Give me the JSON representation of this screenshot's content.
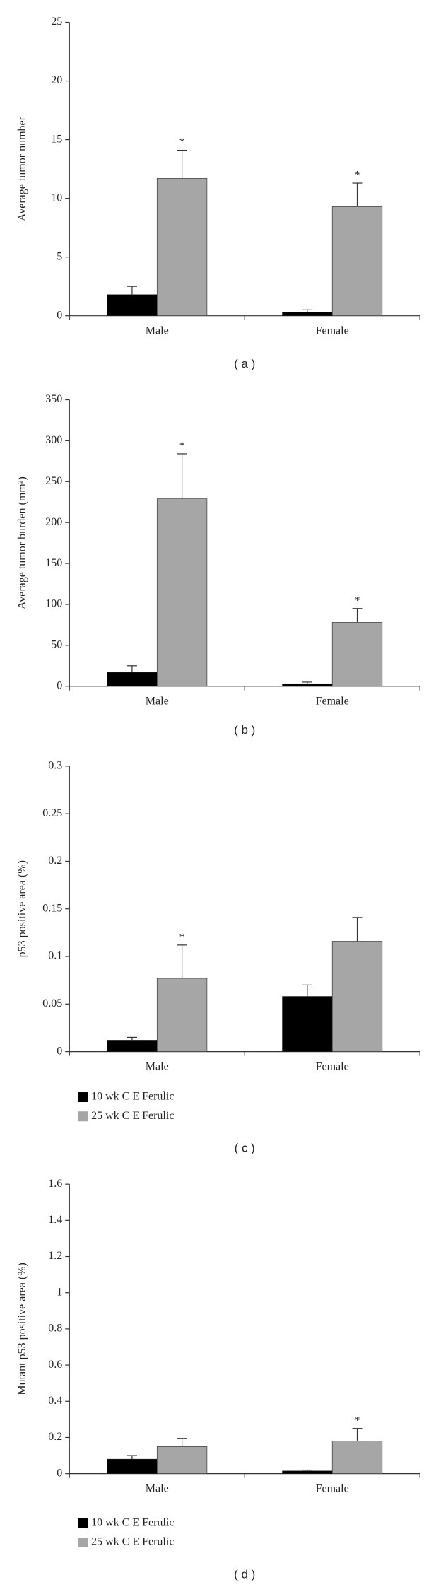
{
  "chart_data": [
    {
      "type": "bar",
      "ylabel": "Average tumor number",
      "caption": "( a )",
      "categories": [
        "Male",
        "Female"
      ],
      "ylim": [
        0,
        25
      ],
      "yticks": [
        0,
        5,
        10,
        15,
        20,
        25
      ],
      "series": [
        {
          "color": "#000000",
          "values": [
            1.8,
            0.3
          ],
          "errors": [
            0.7,
            0.2
          ],
          "markers": [
            null,
            null
          ]
        },
        {
          "color": "#a6a6a6",
          "values": [
            11.7,
            9.3
          ],
          "errors": [
            2.4,
            2.0
          ],
          "markers": [
            "*",
            "*"
          ]
        }
      ]
    },
    {
      "type": "bar",
      "ylabel": "Average tumor burden (mm²)",
      "caption": "( b )",
      "categories": [
        "Male",
        "Female"
      ],
      "ylim": [
        0,
        350
      ],
      "yticks": [
        0,
        50,
        100,
        150,
        200,
        250,
        300,
        350
      ],
      "series": [
        {
          "color": "#000000",
          "values": [
            17,
            3
          ],
          "errors": [
            8,
            2
          ],
          "markers": [
            null,
            null
          ]
        },
        {
          "color": "#a6a6a6",
          "values": [
            229,
            78
          ],
          "errors": [
            55,
            17
          ],
          "markers": [
            "*",
            "*"
          ]
        }
      ]
    },
    {
      "type": "bar",
      "ylabel": "p53 positive area (%)",
      "caption": "( c )",
      "categories": [
        "Male",
        "Female"
      ],
      "ylim": [
        0,
        0.3
      ],
      "yticks": [
        0,
        0.05,
        0.1,
        0.15,
        0.2,
        0.25,
        0.3
      ],
      "series": [
        {
          "name": "10 wk C E Ferulic",
          "color": "#000000",
          "values": [
            0.012,
            0.058
          ],
          "errors": [
            0.003,
            0.012
          ],
          "markers": [
            null,
            null
          ]
        },
        {
          "name": "25 wk C E Ferulic",
          "color": "#a6a6a6",
          "values": [
            0.077,
            0.116
          ],
          "errors": [
            0.035,
            0.025
          ],
          "markers": [
            "*",
            null
          ]
        }
      ]
    },
    {
      "type": "bar",
      "ylabel": "Mutant p53 positive area (%)",
      "caption": "( d )",
      "categories": [
        "Male",
        "Female"
      ],
      "ylim": [
        0,
        1.6
      ],
      "yticks": [
        0,
        0.2,
        0.4,
        0.6,
        0.8,
        1,
        1.2,
        1.4,
        1.6
      ],
      "series": [
        {
          "name": "10 wk C E Ferulic",
          "color": "#000000",
          "values": [
            0.08,
            0.015
          ],
          "errors": [
            0.02,
            0.005
          ],
          "markers": [
            null,
            null
          ]
        },
        {
          "name": "25 wk C E Ferulic",
          "color": "#a6a6a6",
          "values": [
            0.15,
            0.18
          ],
          "errors": [
            0.045,
            0.07
          ],
          "markers": [
            null,
            "*"
          ]
        }
      ]
    }
  ]
}
